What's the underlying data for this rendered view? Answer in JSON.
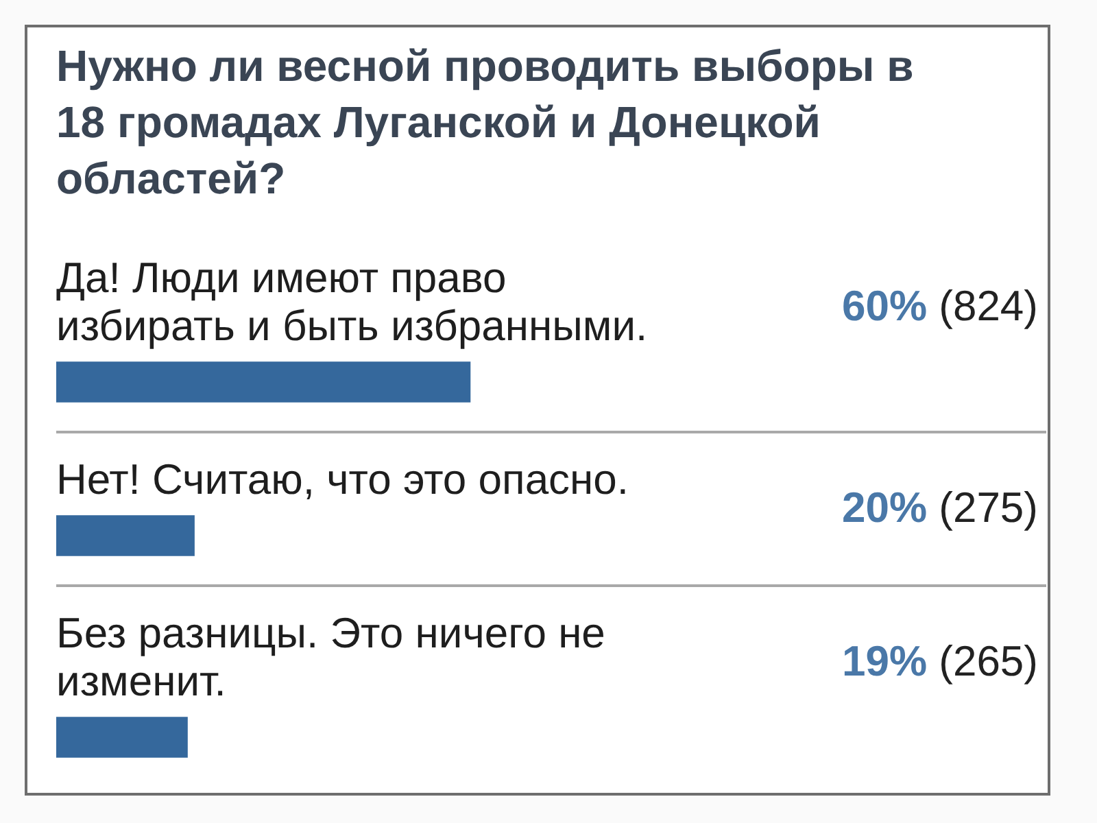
{
  "chart_data": {
    "type": "bar",
    "orientation": "horizontal",
    "title": "Нужно ли весной проводить выборы в 18 громадах Луганской и Донецкой областей?",
    "categories": [
      "Да! Люди имеют право избирать и быть избранными.",
      "Нет! Считаю, что это опасно.",
      "Без разницы. Это ничего не изменит."
    ],
    "values": [
      60,
      20,
      19
    ],
    "value_labels": [
      "60% (824)",
      "20% (275)",
      "19% (265)"
    ],
    "color": "#35689c",
    "tick_labels": false
  }
}
